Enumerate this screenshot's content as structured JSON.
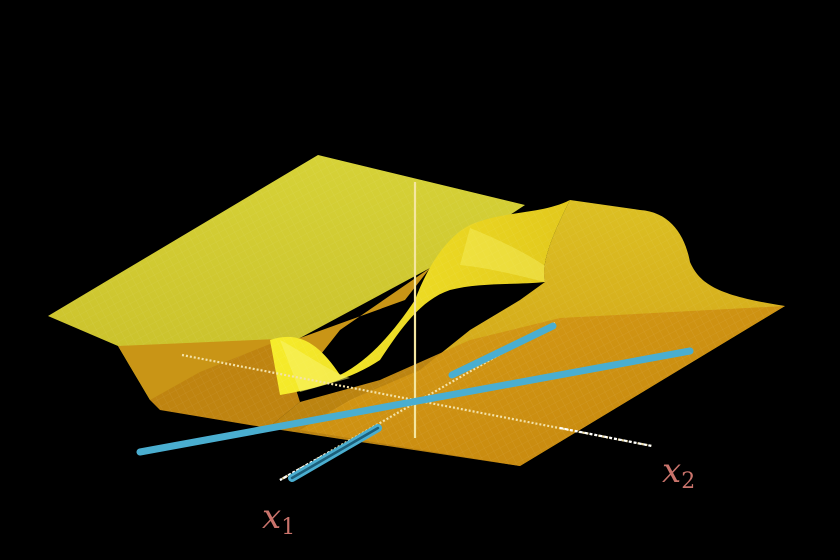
{
  "labels": {
    "x1_var": "x",
    "x1_sub": "1",
    "x2_var": "x",
    "x2_sub": "2"
  },
  "colors": {
    "background": "#000000",
    "surface_light": "#d8d233",
    "surface_dark": "#c88a10",
    "surface_bright": "#f2e41a",
    "axis": "#f4e3a8",
    "axis_ticks": "#ffffff",
    "blue_lines": "#4aaed0",
    "label": "#c9736b"
  }
}
